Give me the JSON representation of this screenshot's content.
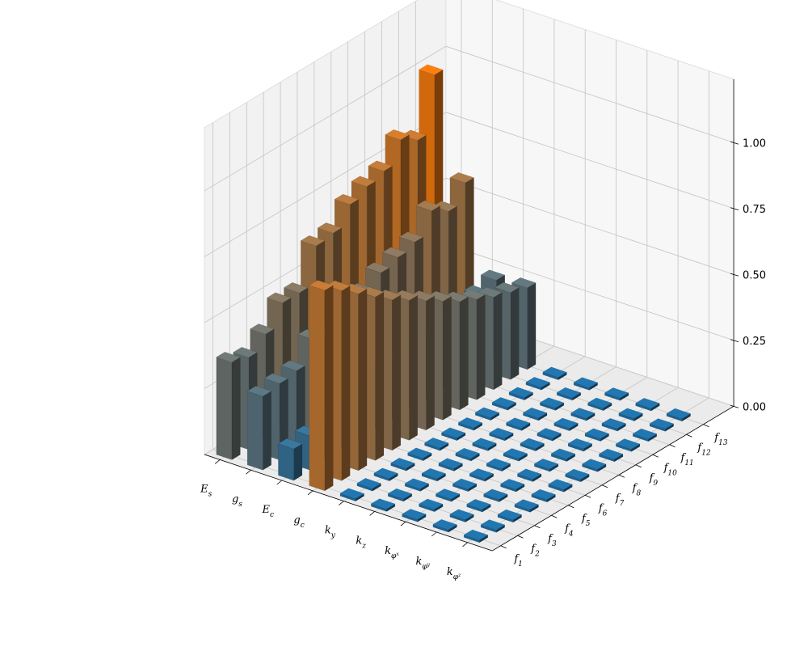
{
  "chart_data": {
    "type": "bar3d",
    "title": "",
    "xlabel": "",
    "ylabel": "",
    "zlabel": "",
    "x_categories": [
      {
        "base": "E",
        "sub": "s"
      },
      {
        "base": "g",
        "sub": "s"
      },
      {
        "base": "E",
        "sub": "c"
      },
      {
        "base": "g",
        "sub": "c"
      },
      {
        "base": "k",
        "sub": "y"
      },
      {
        "base": "k",
        "sub": "z"
      },
      {
        "base": "k",
        "sub": "φx"
      },
      {
        "base": "k",
        "sub": "φy"
      },
      {
        "base": "k",
        "sub": "φz"
      }
    ],
    "y_categories": [
      {
        "base": "f",
        "sub": "1"
      },
      {
        "base": "f",
        "sub": "2"
      },
      {
        "base": "f",
        "sub": "3"
      },
      {
        "base": "f",
        "sub": "4"
      },
      {
        "base": "f",
        "sub": "5"
      },
      {
        "base": "f",
        "sub": "6"
      },
      {
        "base": "f",
        "sub": "7"
      },
      {
        "base": "f",
        "sub": "8"
      },
      {
        "base": "f",
        "sub": "9"
      },
      {
        "base": "f",
        "sub": "10"
      },
      {
        "base": "f",
        "sub": "11"
      },
      {
        "base": "f",
        "sub": "12"
      },
      {
        "base": "f",
        "sub": "13"
      }
    ],
    "z_ticks": [
      "0.00",
      "0.25",
      "0.50",
      "0.75",
      "1.00"
    ],
    "zlim": [
      0,
      1
    ],
    "grid": true,
    "colormap": {
      "low": "#1f77b4",
      "high": "#ff7f0e"
    },
    "values": [
      [
        0.37,
        0.35,
        0.4,
        0.48,
        0.48,
        0.62,
        0.63,
        0.7,
        0.73,
        0.75,
        0.83,
        0.79,
        1.0
      ],
      [
        0.28,
        0.29,
        0.3,
        0.38,
        0.35,
        0.45,
        0.44,
        0.48,
        0.5,
        0.52,
        0.6,
        0.56,
        0.63
      ],
      [
        0.12,
        0.13,
        0.15,
        0.17,
        0.17,
        0.22,
        0.22,
        0.21,
        0.24,
        0.26,
        0.27,
        0.28,
        0.3
      ],
      [
        0.76,
        0.72,
        0.67,
        0.62,
        0.57,
        0.53,
        0.49,
        0.45,
        0.41,
        0.38,
        0.35,
        0.33,
        0.31
      ],
      [
        0.01,
        0.01,
        0.01,
        0.01,
        0.01,
        0.01,
        0.01,
        0.01,
        0.01,
        0.01,
        0.01,
        0.01,
        0.01
      ],
      [
        0.01,
        0.01,
        0.01,
        0.01,
        0.01,
        0.01,
        0.01,
        0.01,
        0.01,
        0.01,
        0.01,
        0.01,
        0.01
      ],
      [
        0.01,
        0.01,
        0.01,
        0.01,
        0.01,
        0.01,
        0.01,
        0.01,
        0.01,
        0.01,
        0.01,
        0.01,
        0.01
      ],
      [
        0.01,
        0.01,
        0.01,
        0.01,
        0.01,
        0.01,
        0.01,
        0.01,
        0.01,
        0.01,
        0.01,
        0.01,
        0.01
      ],
      [
        0.01,
        0.01,
        0.01,
        0.01,
        0.01,
        0.01,
        0.01,
        0.01,
        0.01,
        0.01,
        0.01,
        0.01,
        0.01
      ]
    ]
  }
}
